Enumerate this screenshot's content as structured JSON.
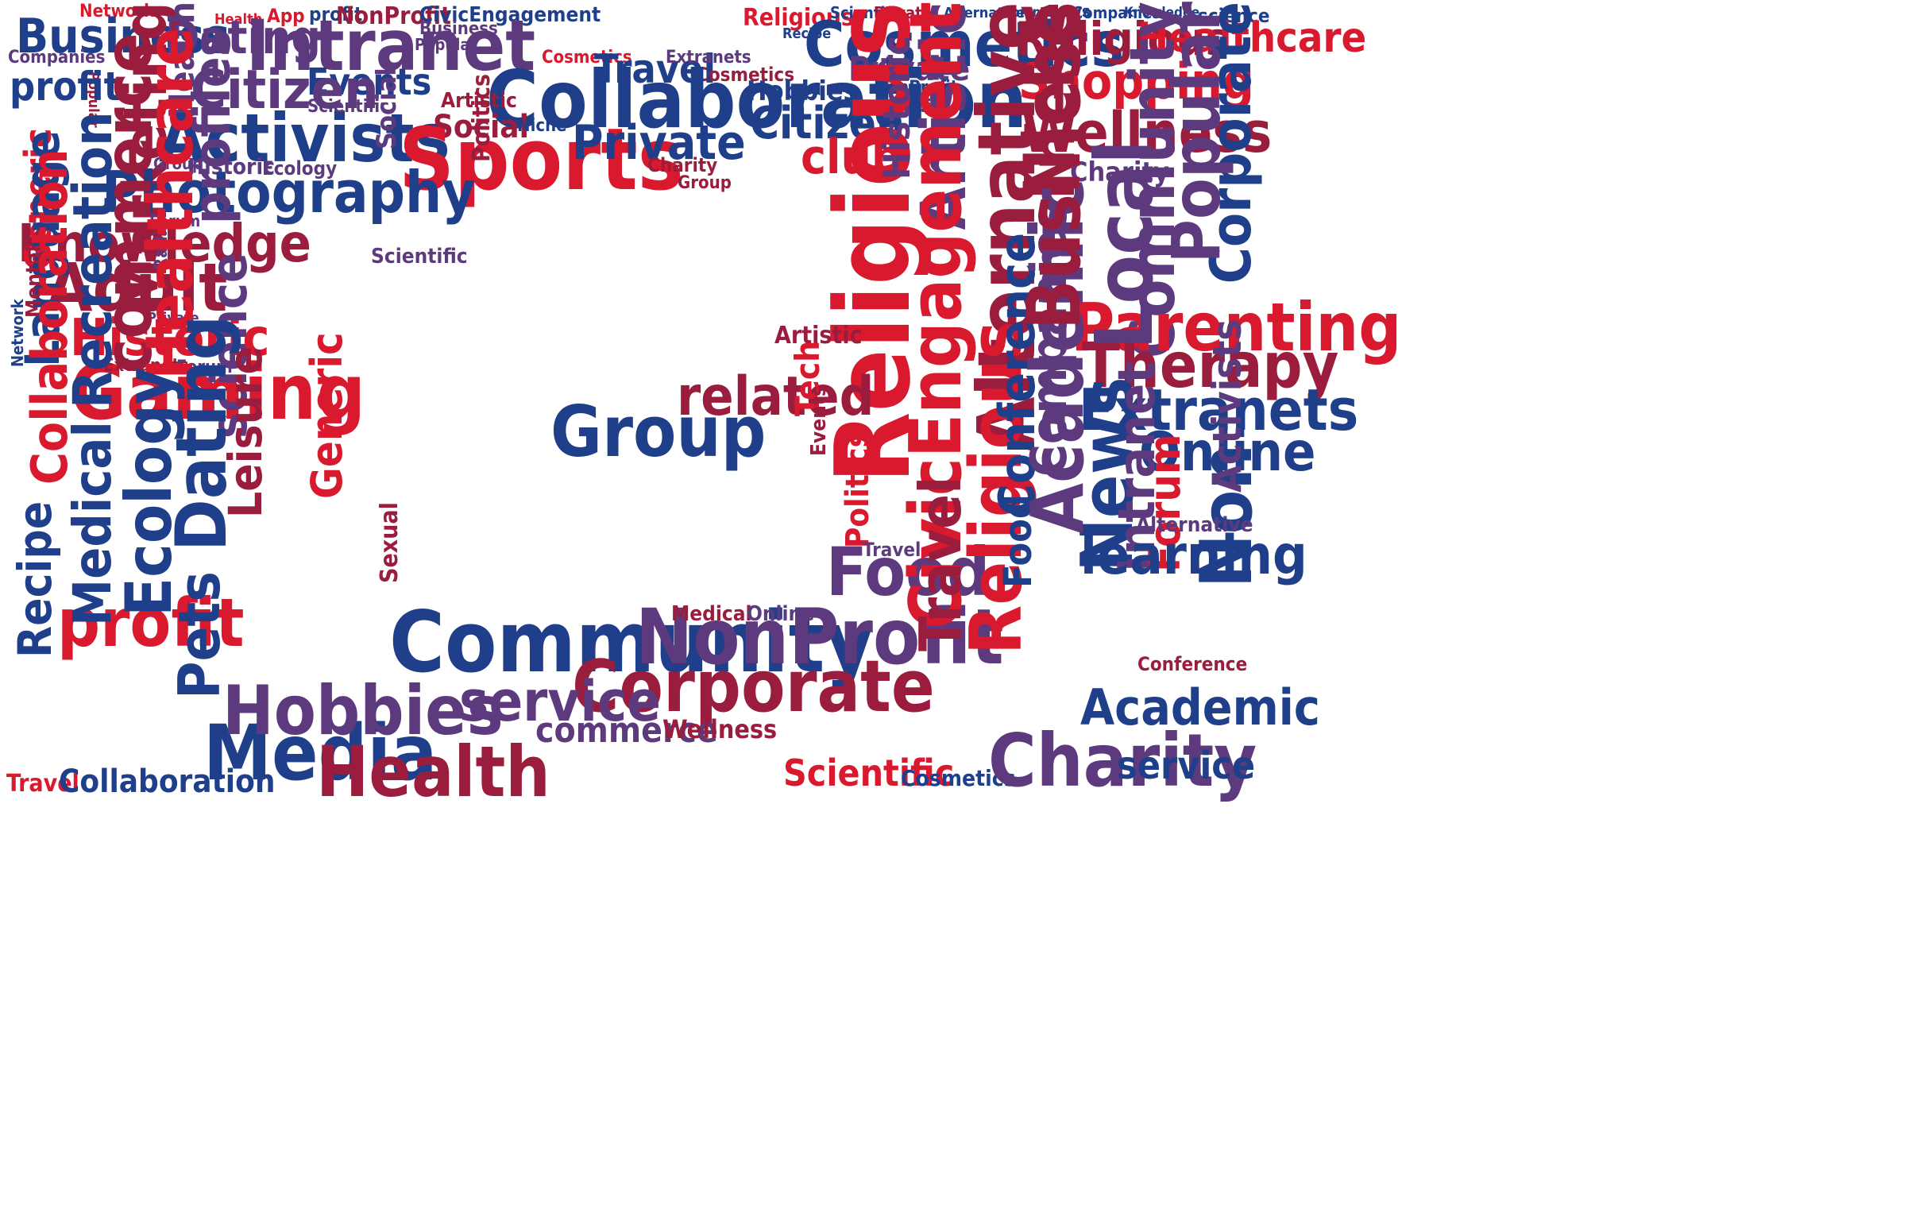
{
  "palette": {
    "navy": "#1f3f8a",
    "blue": "#2a55a8",
    "purple": "#5d3a7e",
    "maroon": "#9b1d3d",
    "red": "#d8192e"
  },
  "words": [
    "Network",
    "Health",
    "App",
    "profit",
    "NonProfit",
    "CivicEngagement",
    "Religious",
    "Scientific",
    "Private",
    "Alternative",
    "Community",
    "News",
    "Companies",
    "Knowledge",
    "science",
    "Business",
    "Dating",
    "Intranet",
    "Business",
    "Popular",
    "Cosmetics",
    "Religious",
    "Healthcare",
    "Recipe",
    "Companies",
    "Cosmetics",
    "Travel",
    "Extranets",
    "Private",
    "Events",
    "Popular",
    "Marketing",
    "Health",
    "Citizen",
    "Cosmetics",
    "Hobbies",
    "Collaboration",
    "NonProfit",
    "profit",
    "Shopping",
    "Radio",
    "Activists",
    "Artistic",
    "Scientific",
    "Social",
    "Niche",
    "Artistic",
    "Wellness",
    "Sports",
    "Citizen",
    "Private",
    "Alternative",
    "Corporate",
    "Group",
    "Historic",
    "Ecology",
    "Charity",
    "Group",
    "club",
    "Photography",
    "Knowledge",
    "Social",
    "Charity",
    "Adult",
    "Generic",
    "Forum",
    "Scientific",
    "Historic",
    "Politics",
    "Religious",
    "Network",
    "Niche",
    "Popular",
    "Community",
    "Parenting",
    "Historic",
    "Artistic",
    "profiles",
    "Private",
    "Therapy",
    "Gaming",
    "Extranets",
    "Forum",
    "Radio",
    "related",
    "Group",
    "Language",
    "commerce",
    "Recreation",
    "Healthcare",
    "Extranets",
    "science",
    "Mental",
    "Online",
    "Local",
    "Dating",
    "profit",
    "Leisure",
    "Media",
    "Hobbies",
    "Health",
    "Pets",
    "Ecology",
    "Medical",
    "Recipe",
    "Collaboration",
    "Travel",
    "Collaboration",
    "Community",
    "NonProfit",
    "Corporate",
    "service",
    "commerce",
    "Wellness",
    "Scientific",
    "Cosmetics",
    "Charity",
    "Academic",
    "Non",
    "Food",
    "Politics",
    "Travel",
    "Conference",
    "CivicEngagement",
    "Religious",
    "Food",
    "Travel",
    "Conference",
    "News",
    "Intranet",
    "Forum",
    "Academic",
    "Companies",
    "Business",
    "learning",
    "Tech",
    "Events",
    "Generic",
    "Sexual",
    "Medical",
    "Online",
    "Alternative",
    "service",
    "Activists"
  ]
}
